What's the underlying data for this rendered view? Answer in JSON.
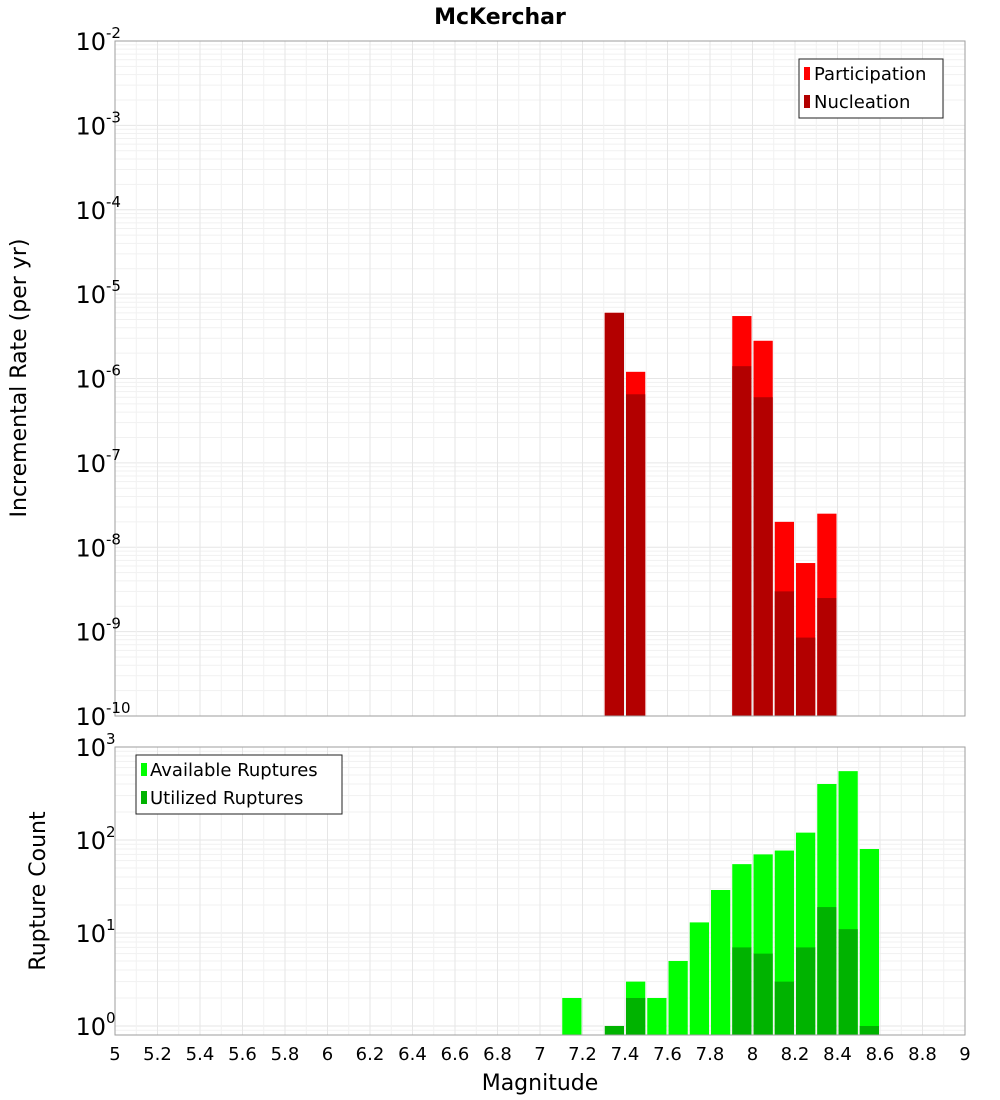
{
  "title": "McKerchar",
  "xlabel": "Magnitude",
  "colors": {
    "participation": "#ff0000",
    "nucleation": "#b30000",
    "available": "#00ff00",
    "utilized": "#00b300"
  },
  "chart_data": [
    {
      "type": "bar",
      "scale": "log",
      "ylabel": "Incremental Rate (per yr)",
      "ylim": [
        1e-10,
        0.01
      ],
      "xlim": [
        5,
        9
      ],
      "grid": true,
      "legend_position": "top-right",
      "x": [
        7.35,
        7.45,
        7.95,
        8.05,
        8.15,
        8.25,
        8.35
      ],
      "series": [
        {
          "name": "Participation",
          "values": [
            6e-06,
            1.2e-06,
            5.5e-06,
            2.8e-06,
            2e-08,
            6.5e-09,
            2.5e-08
          ]
        },
        {
          "name": "Nucleation",
          "values": [
            6e-06,
            6.5e-07,
            1.4e-06,
            6e-07,
            3e-09,
            8.5e-10,
            2.5e-09
          ]
        }
      ],
      "yticks": [
        {
          "base": "10",
          "exp": "-10"
        },
        {
          "base": "10",
          "exp": "-9"
        },
        {
          "base": "10",
          "exp": "-8"
        },
        {
          "base": "10",
          "exp": "-7"
        },
        {
          "base": "10",
          "exp": "-6"
        },
        {
          "base": "10",
          "exp": "-5"
        },
        {
          "base": "10",
          "exp": "-4"
        },
        {
          "base": "10",
          "exp": "-3"
        },
        {
          "base": "10",
          "exp": "-2"
        }
      ]
    },
    {
      "type": "bar",
      "scale": "log",
      "ylabel": "Rupture Count",
      "ylim": [
        0.8,
        1000
      ],
      "xlim": [
        5,
        9
      ],
      "grid": true,
      "legend_position": "top-left",
      "x": [
        7.15,
        7.35,
        7.45,
        7.55,
        7.65,
        7.75,
        7.85,
        7.95,
        8.05,
        8.15,
        8.25,
        8.35,
        8.45,
        8.55
      ],
      "series": [
        {
          "name": "Available Ruptures",
          "values": [
            2,
            0,
            3,
            2,
            5,
            13,
            29,
            55,
            70,
            77,
            120,
            400,
            550,
            80
          ]
        },
        {
          "name": "Utilized Ruptures",
          "values": [
            0,
            1,
            2,
            0,
            0,
            0,
            0,
            7,
            6,
            3,
            7,
            19,
            11,
            1
          ]
        }
      ],
      "yticks": [
        {
          "base": "10",
          "exp": "0"
        },
        {
          "base": "10",
          "exp": "1"
        },
        {
          "base": "10",
          "exp": "2"
        },
        {
          "base": "10",
          "exp": "3"
        }
      ]
    }
  ],
  "xticks": [
    "5",
    "5.2",
    "5.4",
    "5.6",
    "5.8",
    "6",
    "6.2",
    "6.4",
    "6.6",
    "6.8",
    "7",
    "7.2",
    "7.4",
    "7.6",
    "7.8",
    "8",
    "8.2",
    "8.4",
    "8.6",
    "8.8",
    "9"
  ]
}
